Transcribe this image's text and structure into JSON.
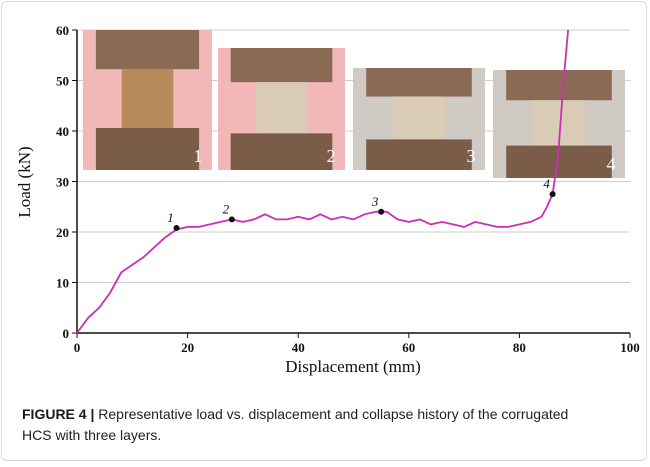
{
  "chart_data": {
    "type": "line",
    "xlabel": "Displacement (mm)",
    "ylabel": "Load (kN)",
    "x": [
      0,
      2,
      4,
      6,
      8,
      10,
      12,
      14,
      16,
      18,
      20,
      22,
      24,
      26,
      28,
      30,
      32,
      34,
      36,
      38,
      40,
      42,
      44,
      46,
      48,
      50,
      52,
      54,
      56,
      58,
      60,
      62,
      64,
      66,
      68,
      70,
      72,
      74,
      76,
      78,
      80,
      82,
      84,
      85,
      86,
      87,
      88,
      88.8
    ],
    "values": [
      0,
      3,
      5,
      8,
      12,
      13.5,
      15,
      17,
      19,
      20.5,
      21,
      21,
      21.5,
      22,
      22.5,
      22,
      22.5,
      23.5,
      22.5,
      22.5,
      23,
      22.5,
      23.5,
      22.5,
      23,
      22.5,
      23.5,
      24,
      24,
      22.5,
      22,
      22.5,
      21.5,
      22,
      21.5,
      21,
      22,
      21.5,
      21,
      21,
      21.5,
      22,
      23,
      25,
      27.5,
      35,
      50,
      60
    ],
    "color": "#cc2fb5",
    "xlim": [
      0,
      100
    ],
    "xticks": [
      0,
      20,
      40,
      60,
      80,
      100
    ],
    "ylim": [
      0,
      60
    ],
    "yticks": [
      0,
      10,
      20,
      30,
      40,
      50,
      60
    ],
    "grid": true,
    "annotations": [
      {
        "text": "1",
        "x": 18,
        "y": 20.8
      },
      {
        "text": "2",
        "x": 28,
        "y": 22.5
      },
      {
        "text": "3",
        "x": 55,
        "y": 24
      },
      {
        "text": "4",
        "x": 86,
        "y": 27.5
      }
    ],
    "photo_labels": [
      "1",
      "2",
      "3",
      "4"
    ]
  },
  "caption": {
    "label": "FIGURE 4 |",
    "text": "Representative load vs. displacement and collapse history of the corrugated HCS with three layers."
  }
}
